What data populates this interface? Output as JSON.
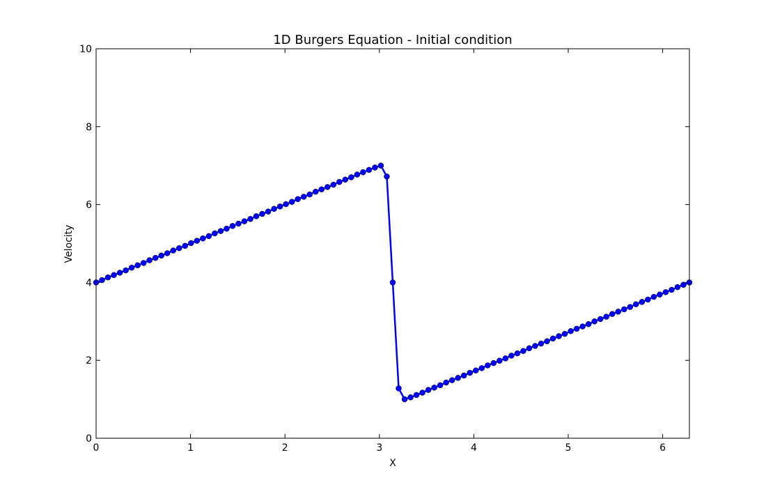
{
  "chart_data": {
    "type": "line",
    "title": "1D Burgers Equation - Initial condition",
    "xlabel": "X",
    "ylabel": "Velocity",
    "xlim": [
      0,
      6.283185
    ],
    "ylim": [
      0,
      10
    ],
    "x_ticks": [
      0,
      1,
      2,
      3,
      4,
      5,
      6
    ],
    "x_tick_labels": [
      "0",
      "1",
      "2",
      "3",
      "4",
      "5",
      "6"
    ],
    "y_ticks": [
      0,
      2,
      4,
      6,
      8,
      10
    ],
    "y_tick_labels": [
      "0",
      "2",
      "4",
      "6",
      "8",
      "10"
    ],
    "grid": false,
    "line_color": "#0000ff",
    "marker": "circle",
    "series": [
      {
        "x": [
          0,
          0.0628,
          0.1257,
          0.1885,
          0.2513,
          0.3142,
          0.377,
          0.4398,
          0.5027,
          0.5655,
          0.6283,
          0.6912,
          0.754,
          0.8168,
          0.8796,
          0.9425,
          1.0053,
          1.0681,
          1.131,
          1.1938,
          1.2566,
          1.3195,
          1.3823,
          1.4451,
          1.508,
          1.5708,
          1.6336,
          1.6965,
          1.7593,
          1.8221,
          1.885,
          1.9478,
          2.0106,
          2.0735,
          2.1363,
          2.1991,
          2.2619,
          2.3248,
          2.3876,
          2.4504,
          2.5133,
          2.5761,
          2.6389,
          2.7018,
          2.7646,
          2.8274,
          2.8903,
          2.9531,
          3.0159,
          3.0788,
          3.1416,
          3.2044,
          3.2673,
          3.3301,
          3.3929,
          3.4558,
          3.5186,
          3.5814,
          3.6442,
          3.7071,
          3.7699,
          3.8327,
          3.8956,
          3.9584,
          4.0212,
          4.0841,
          4.1469,
          4.2097,
          4.2726,
          4.3354,
          4.3982,
          4.4611,
          4.5239,
          4.5867,
          4.6496,
          4.7124,
          4.7752,
          4.8381,
          4.9009,
          4.9637,
          5.0265,
          5.0894,
          5.1522,
          5.215,
          5.2779,
          5.3407,
          5.4035,
          5.4664,
          5.5292,
          5.592,
          5.6549,
          5.7177,
          5.7805,
          5.8434,
          5.9062,
          5.969,
          6.0319,
          6.0947,
          6.1575,
          6.2204,
          6.2832
        ],
        "y": [
          4.0,
          4.06,
          4.13,
          4.19,
          4.25,
          4.31,
          4.38,
          4.44,
          4.5,
          4.57,
          4.63,
          4.69,
          4.75,
          4.82,
          4.88,
          4.94,
          5.01,
          5.07,
          5.13,
          5.19,
          5.26,
          5.32,
          5.38,
          5.45,
          5.51,
          5.57,
          5.63,
          5.7,
          5.76,
          5.82,
          5.89,
          5.95,
          6.01,
          6.07,
          6.14,
          6.2,
          6.26,
          6.33,
          6.39,
          6.45,
          6.51,
          6.58,
          6.64,
          6.7,
          6.77,
          6.83,
          6.89,
          6.95,
          7.0,
          6.72,
          4.0,
          1.28,
          1.0,
          1.05,
          1.11,
          1.17,
          1.24,
          1.3,
          1.36,
          1.43,
          1.49,
          1.55,
          1.61,
          1.68,
          1.74,
          1.8,
          1.87,
          1.93,
          1.99,
          2.05,
          2.12,
          2.18,
          2.24,
          2.31,
          2.37,
          2.43,
          2.49,
          2.56,
          2.62,
          2.68,
          2.75,
          2.81,
          2.87,
          2.93,
          3.0,
          3.06,
          3.12,
          3.19,
          3.25,
          3.31,
          3.37,
          3.44,
          3.5,
          3.56,
          3.63,
          3.69,
          3.75,
          3.81,
          3.88,
          3.94,
          4.0
        ]
      }
    ]
  }
}
